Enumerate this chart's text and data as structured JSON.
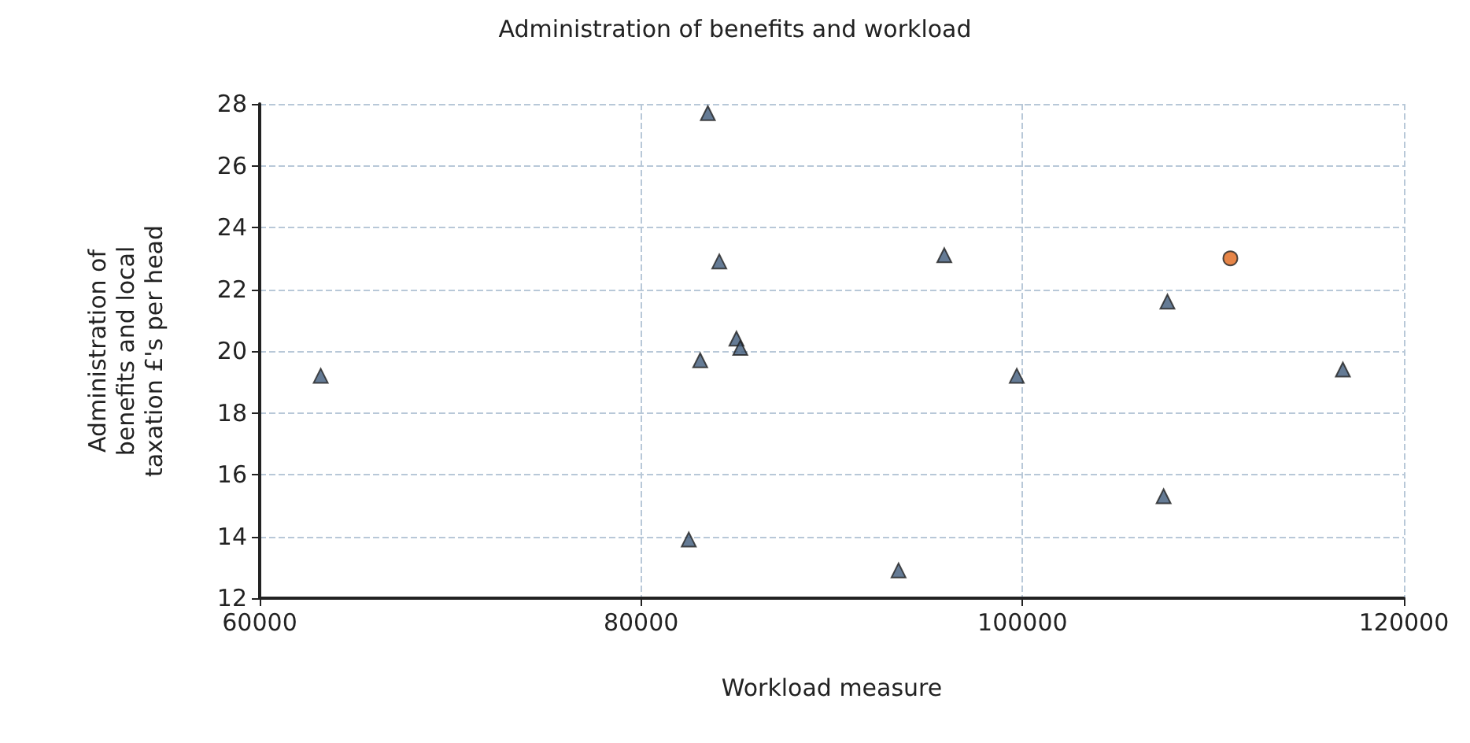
{
  "chart_data": {
    "type": "scatter",
    "title": "Administration of benefits and workload",
    "xlabel": "Workload measure",
    "ylabel": "Administration of benefits and local taxation £'s per head",
    "xlim": [
      60000,
      120000
    ],
    "xticks": [
      60000,
      80000,
      100000,
      120000
    ],
    "ylim": [
      12,
      28
    ],
    "yticks": [
      12,
      14,
      16,
      18,
      20,
      22,
      24,
      26,
      28
    ],
    "grid": true,
    "series": [
      {
        "color": "#3f5a7a",
        "marker": "triangle",
        "x": [
          63200,
          83500,
          84100,
          85000,
          85200,
          83100,
          82500,
          95900,
          99700,
          93500,
          107600,
          107400,
          116800
        ],
        "values": [
          19.2,
          27.7,
          22.9,
          20.4,
          20.1,
          19.7,
          13.9,
          23.1,
          19.2,
          12.9,
          21.6,
          15.3,
          19.4
        ]
      },
      {
        "color": "#e0661a",
        "marker": "circle",
        "x": [
          110900
        ],
        "values": [
          23.0
        ]
      }
    ]
  }
}
